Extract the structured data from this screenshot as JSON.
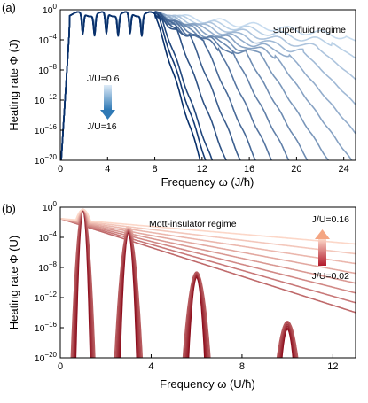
{
  "panels": [
    {
      "panel_label": "(a)",
      "regime_label": "Superfluid regime",
      "arrow_label_top": "J/U=0.6",
      "arrow_label_bottom": "J/U=16",
      "arrow_direction": "down",
      "arrow_color": "#2f79b5"
    },
    {
      "panel_label": "(b)",
      "regime_label": "Mott-insulator regime",
      "arrow_label_top": "J/U=0.16",
      "arrow_label_bottom": "J/U=0.02",
      "arrow_direction": "up",
      "arrow_color": "#c0392b"
    }
  ],
  "chart_data": [
    {
      "type": "line",
      "title": "",
      "xlabel": "Frequency ω (J/ħ)",
      "ylabel": "Heating rate Φ (J)",
      "y_scale": "log",
      "xlim": [
        0,
        25
      ],
      "ylim": [
        1e-20,
        1
      ],
      "x_ticks": [
        0,
        4,
        8,
        12,
        16,
        20,
        24
      ],
      "x_tick_labels": [
        "0",
        "4",
        "8",
        "12",
        "16",
        "20",
        "24"
      ],
      "y_ticks": [
        1,
        0.0001,
        1e-08,
        1e-12,
        1e-16,
        1e-20
      ],
      "y_tick_labels": [
        "10^0",
        "10^-4",
        "10^-8",
        "10^-12",
        "10^-16",
        "10^-20"
      ],
      "colormap": [
        "#c6dbef",
        "#08306b"
      ],
      "series_count": 16,
      "J_over_U_range": [
        0.6,
        16
      ],
      "series": [
        {
          "J_over_U": 0.6,
          "cutoff": 24.2,
          "decay_log10_per_unit": 0.33
        },
        {
          "J_over_U": 0.74,
          "cutoff": 23.0,
          "decay_log10_per_unit": 0.46
        },
        {
          "J_over_U": 0.92,
          "cutoff": 21.8,
          "decay_log10_per_unit": 0.59
        },
        {
          "J_over_U": 1.14,
          "cutoff": 20.6,
          "decay_log10_per_unit": 0.72
        },
        {
          "J_over_U": 1.42,
          "cutoff": 19.4,
          "decay_log10_per_unit": 0.85
        },
        {
          "J_over_U": 1.76,
          "cutoff": 18.2,
          "decay_log10_per_unit": 0.98
        },
        {
          "J_over_U": 2.2,
          "cutoff": 17.0,
          "decay_log10_per_unit": 1.11
        },
        {
          "J_over_U": 2.7,
          "cutoff": 15.8,
          "decay_log10_per_unit": 1.24
        },
        {
          "J_over_U": 3.4,
          "cutoff": 14.6,
          "decay_log10_per_unit": 1.37
        },
        {
          "J_over_U": 4.2,
          "cutoff": 13.4,
          "decay_log10_per_unit": 1.5
        },
        {
          "J_over_U": 5.2,
          "cutoff": 12.2,
          "decay_log10_per_unit": 1.63
        },
        {
          "J_over_U": 6.5,
          "cutoff": 11.0,
          "decay_log10_per_unit": 1.76
        },
        {
          "J_over_U": 8.0,
          "cutoff": 9.8,
          "decay_log10_per_unit": 1.89
        },
        {
          "J_over_U": 10.0,
          "cutoff": 8.6,
          "decay_log10_per_unit": 2.02
        },
        {
          "J_over_U": 12.5,
          "cutoff": 8.3,
          "decay_log10_per_unit": 2.15
        },
        {
          "J_over_U": 16.0,
          "cutoff": 8.0,
          "decay_log10_per_unit": 2.28
        }
      ],
      "plateau_log10": -0.6,
      "plateau_range": [
        0.9,
        8.0
      ],
      "low_frequency_dip": [
        0.0,
        0.8
      ],
      "plateau_dips_at": [
        1.9,
        2.9,
        3.9,
        4.9,
        5.9,
        6.9
      ]
    },
    {
      "type": "line",
      "title": "",
      "xlabel": "Frequency ω (U/ħ)",
      "ylabel": "Heating rate Φ (U)",
      "y_scale": "log",
      "xlim": [
        0,
        13
      ],
      "ylim": [
        1e-20,
        1
      ],
      "x_ticks": [
        0,
        4,
        8,
        12
      ],
      "x_tick_labels": [
        "0",
        "4",
        "8",
        "12"
      ],
      "y_ticks": [
        1,
        0.0001,
        1e-08,
        1e-12,
        1e-16,
        1e-20
      ],
      "y_tick_labels": [
        "10^0",
        "10^-4",
        "10^-8",
        "10^-12",
        "10^-16",
        "10^-20"
      ],
      "colormap": [
        "#fcd7c8",
        "#8b0a1a"
      ],
      "series_count": 14,
      "J_over_U_range": [
        0.02,
        0.16
      ],
      "resonance_peaks": [
        {
          "omega": 1.0,
          "peak_log10": -0.3
        },
        {
          "omega": 3.0,
          "peak_log10": -2.5
        },
        {
          "omega": 6.0,
          "peak_log10": -7.5
        },
        {
          "omega": 10.0,
          "peak_log10": -13.5
        }
      ],
      "series": [
        {
          "J_over_U": 0.02,
          "width": 0.4
        },
        {
          "J_over_U": 0.03,
          "width": 0.44
        },
        {
          "J_over_U": 0.04,
          "width": 0.48
        },
        {
          "J_over_U": 0.05,
          "width": 0.53
        },
        {
          "J_over_U": 0.06,
          "width": 0.58
        },
        {
          "J_over_U": 0.07,
          "width": 0.64
        },
        {
          "J_over_U": 0.08,
          "width": 0.7
        },
        {
          "J_over_U": 0.09,
          "width": 0.77
        },
        {
          "J_over_U": 0.1,
          "width": 0.85
        },
        {
          "J_over_U": 0.11,
          "width": 0.94
        },
        {
          "J_over_U": 0.12,
          "width": 1.04
        },
        {
          "J_over_U": 0.13,
          "width": 1.16
        },
        {
          "J_over_U": 0.145,
          "width": 1.3
        },
        {
          "J_over_U": 0.16,
          "width": 1.46
        }
      ]
    }
  ]
}
